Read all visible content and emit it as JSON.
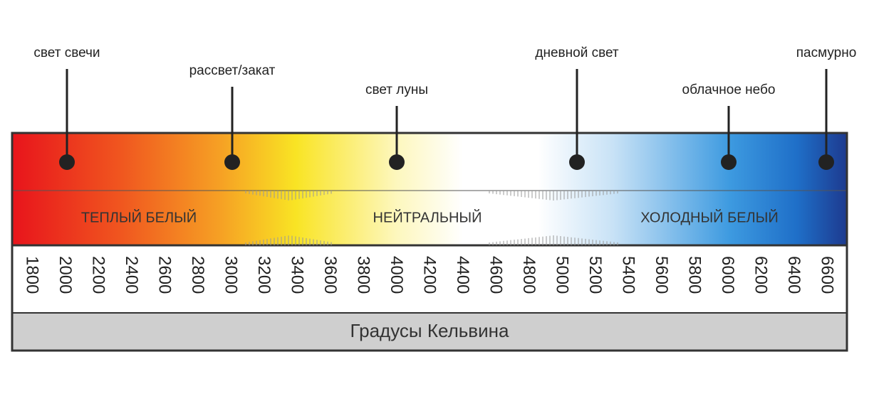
{
  "markers": [
    {
      "label": "свет свечи"
    },
    {
      "label": "рассвет/закат"
    },
    {
      "label": "свет луны"
    },
    {
      "label": "дневной свет"
    },
    {
      "label": "облачное небо"
    },
    {
      "label": "пасмурно"
    }
  ],
  "zones": [
    "ТЕПЛЫЙ БЕЛЫЙ",
    "НЕЙТРАЛЬНЫЙ",
    "ХОЛОДНЫЙ БЕЛЫЙ"
  ],
  "scale": {
    "ticks": [
      "1800",
      "2000",
      "2200",
      "2400",
      "2600",
      "2800",
      "3000",
      "3200",
      "3400",
      "3600",
      "3800",
      "4000",
      "4200",
      "4400",
      "4600",
      "4800",
      "5000",
      "5200",
      "5400",
      "5600",
      "5800",
      "6000",
      "6200",
      "6400",
      "6600"
    ],
    "title": "Градусы Кельвина"
  }
}
